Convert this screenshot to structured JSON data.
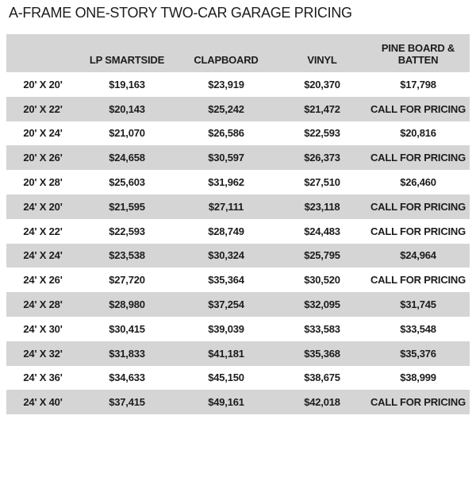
{
  "title": "A-FRAME ONE-STORY TWO-CAR GARAGE PRICING",
  "table": {
    "columns": [
      "",
      "LP SMARTSIDE",
      "CLAPBOARD",
      "VINYL",
      "PINE BOARD & BATTEN"
    ],
    "rows": [
      {
        "size": "20' X 20'",
        "prices": [
          "$19,163",
          "$23,919",
          "$20,370",
          "$17,798"
        ]
      },
      {
        "size": "20' X 22'",
        "prices": [
          "$20,143",
          "$25,242",
          "$21,472",
          "CALL FOR PRICING"
        ]
      },
      {
        "size": "20' X 24'",
        "prices": [
          "$21,070",
          "$26,586",
          "$22,593",
          "$20,816"
        ]
      },
      {
        "size": "20' X 26'",
        "prices": [
          "$24,658",
          "$30,597",
          "$26,373",
          "CALL FOR PRICING"
        ]
      },
      {
        "size": "20' X 28'",
        "prices": [
          "$25,603",
          "$31,962",
          "$27,510",
          "$26,460"
        ]
      },
      {
        "size": "24' X 20'",
        "prices": [
          "$21,595",
          "$27,111",
          "$23,118",
          "CALL FOR PRICING"
        ]
      },
      {
        "size": "24' X 22'",
        "prices": [
          "$22,593",
          "$28,749",
          "$24,483",
          "CALL FOR PRICING"
        ]
      },
      {
        "size": "24' X 24'",
        "prices": [
          "$23,538",
          "$30,324",
          "$25,795",
          "$24,964"
        ]
      },
      {
        "size": "24' X 26'",
        "prices": [
          "$27,720",
          "$35,364",
          "$30,520",
          "CALL FOR PRICING"
        ]
      },
      {
        "size": "24' X 28'",
        "prices": [
          "$28,980",
          "$37,254",
          "$32,095",
          "$31,745"
        ]
      },
      {
        "size": "24' X 30'",
        "prices": [
          "$30,415",
          "$39,039",
          "$33,583",
          "$33,548"
        ]
      },
      {
        "size": "24' X 32'",
        "prices": [
          "$31,833",
          "$41,181",
          "$35,368",
          "$35,376"
        ]
      },
      {
        "size": "24' X 36'",
        "prices": [
          "$34,633",
          "$45,150",
          "$38,675",
          "$38,999"
        ]
      },
      {
        "size": "24' X 40'",
        "prices": [
          "$37,415",
          "$49,161",
          "$42,018",
          "CALL FOR PRICING"
        ]
      }
    ]
  },
  "colors": {
    "row_stripe": "#d5d5d5",
    "header_background": "#d5d5d5",
    "text": "#1c1c1c",
    "page_background": "#ffffff"
  }
}
